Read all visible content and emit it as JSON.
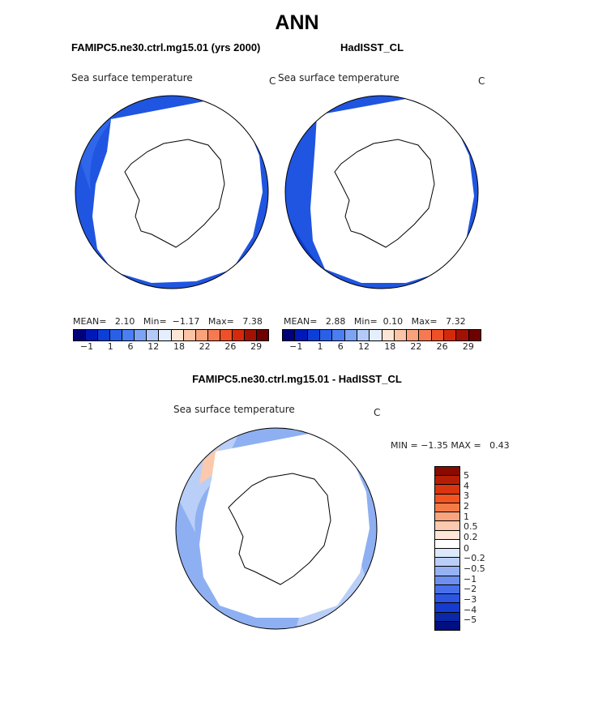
{
  "title": "ANN",
  "panels": [
    {
      "case_label": "FAMIPC5.ne30.ctrl.mg15.01 (yrs 2000)",
      "variable": "Sea surface temperature",
      "units": "C",
      "stats": {
        "mean_label": "MEAN=",
        "mean": "2.10",
        "min_label": "Min=",
        "min": "−1.17",
        "max_label": "Max=",
        "max": "7.38"
      }
    },
    {
      "case_label": "HadISST_CL",
      "variable": "Sea surface temperature",
      "units": "C",
      "stats": {
        "mean_label": "MEAN=",
        "mean": "2.88",
        "min_label": "Min=",
        "min": "0.10",
        "max_label": "Max=",
        "max": "7.32"
      }
    }
  ],
  "shared_colorbar": {
    "colors": [
      "#00007a",
      "#0018b8",
      "#0b3fd6",
      "#2a5fe8",
      "#4a7ef2",
      "#7da3f4",
      "#b3caf8",
      "#e4eefc",
      "#fde5d6",
      "#fcc4a6",
      "#f9a27c",
      "#f57a51",
      "#ee5027",
      "#d42a0c",
      "#a11205",
      "#6e0000"
    ],
    "ticks": [
      "−1",
      "1",
      "6",
      "12",
      "18",
      "22",
      "26",
      "29"
    ]
  },
  "diff": {
    "title": "FAMIPC5.ne30.ctrl.mg15.01 - HadISST_CL",
    "variable": "Sea surface temperature",
    "units": "C",
    "minmax": {
      "min_label": "MIN =",
      "min": "−1.35",
      "max_label": "MAX =",
      "max": "0.43"
    },
    "colorbar": {
      "colors": [
        "#8a0a00",
        "#b51e05",
        "#d9360f",
        "#f25422",
        "#f67a48",
        "#f9a47f",
        "#fbc9ae",
        "#fde6d8",
        "#ffffff",
        "#dce8fb",
        "#b9cff8",
        "#94b2f4",
        "#6c8ff0",
        "#4870ea",
        "#2c55e0",
        "#163ccd",
        "#0a28a8",
        "#001080"
      ],
      "labels": [
        "5",
        "4",
        "3",
        "2",
        "1",
        "0.5",
        "0.2",
        "0",
        "−0.2",
        "−0.5",
        "−1",
        "−2",
        "−3",
        "−4",
        "−5"
      ]
    }
  },
  "colors": {
    "cold_ocean": "#1f55e0",
    "mid_ocean": "#4a7ef2",
    "warm_ocean": "#0d3bd0",
    "diff_ocean": "#8eb0f2",
    "land": "#ffffff",
    "coast": "#000000"
  }
}
